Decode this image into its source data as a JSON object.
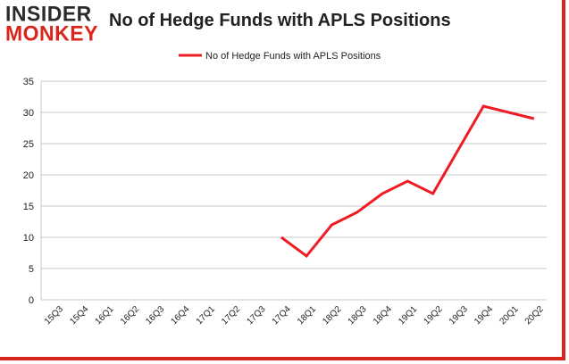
{
  "logo": {
    "line1": "INSIDER",
    "line2": "MONKEY"
  },
  "colors": {
    "accent": "#d9261c",
    "line": "#ee1c24",
    "grid": "#c8c8c8",
    "text": "#222222"
  },
  "chart_data": {
    "type": "line",
    "title": "No of Hedge Funds with APLS Positions",
    "xlabel": "",
    "ylabel": "",
    "categories": [
      "15Q3",
      "15Q4",
      "16Q1",
      "16Q2",
      "16Q3",
      "16Q4",
      "17Q1",
      "17Q2",
      "17Q3",
      "17Q4",
      "18Q1",
      "18Q2",
      "18Q3",
      "18Q4",
      "19Q1",
      "19Q2",
      "19Q3",
      "19Q4",
      "20Q1",
      "20Q2"
    ],
    "series": [
      {
        "name": "No of Hedge Funds with APLS Positions",
        "values": [
          null,
          null,
          null,
          null,
          null,
          null,
          null,
          null,
          null,
          10,
          7,
          12,
          14,
          17,
          19,
          17,
          24,
          31,
          30,
          29
        ]
      }
    ],
    "ylim": [
      0,
      35
    ],
    "yticks": [
      0,
      5,
      10,
      15,
      20,
      25,
      30,
      35
    ],
    "grid": true,
    "legend": "top-center"
  }
}
